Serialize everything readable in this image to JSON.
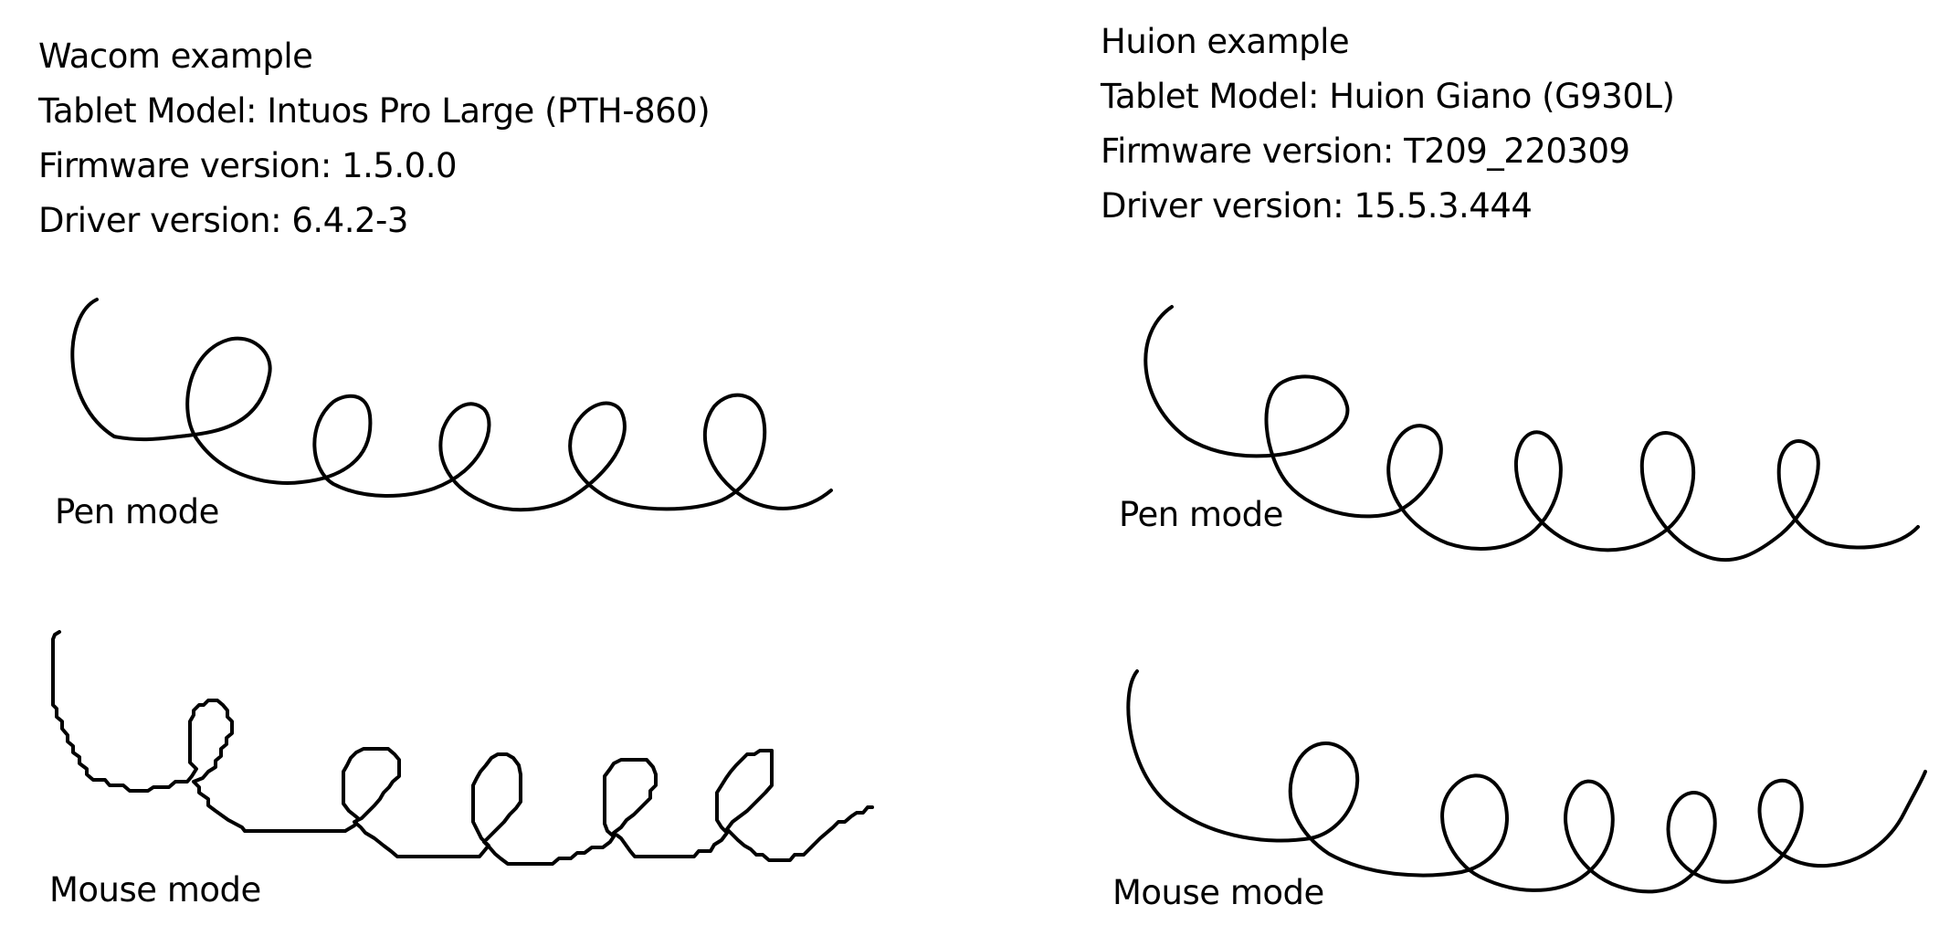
{
  "wacom": {
    "title": "Wacom example",
    "tablet_model": "Tablet Model: Intuos Pro Large (PTH-860)",
    "firmware": "Firmware version: 1.5.0.0",
    "driver": "Driver version: 6.4.2-3",
    "pen_label": "Pen mode",
    "mouse_label": "Mouse mode"
  },
  "huion": {
    "title": "Huion example",
    "tablet_model": "Tablet Model: Huion Giano (G930L)",
    "firmware": "Firmware version: T209_220309",
    "driver": "Driver version: 15.5.3.444",
    "pen_label": "Pen mode",
    "mouse_label": "Mouse mode"
  }
}
